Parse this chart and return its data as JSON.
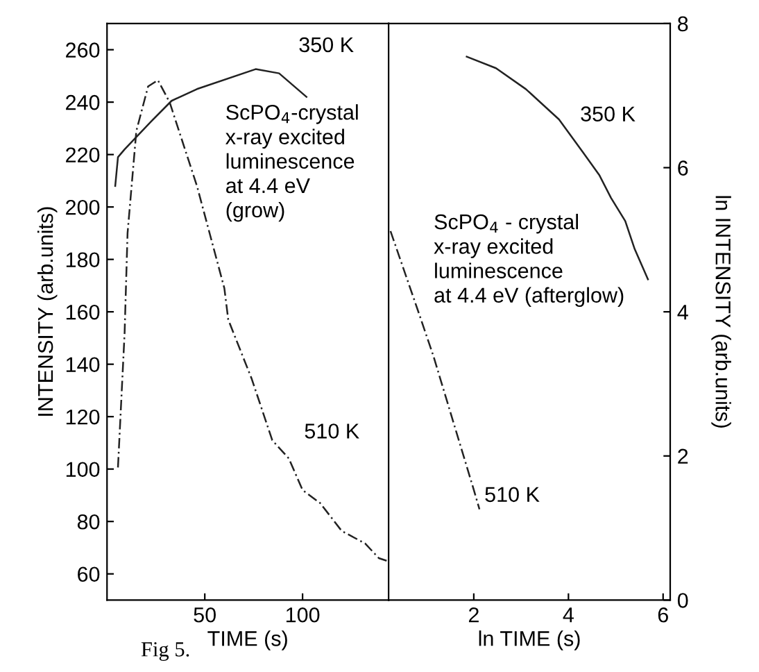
{
  "chart_data": [
    {
      "type": "line",
      "xlabel": "TIME (s)",
      "ylabel": "INTENSITY (arb.units)",
      "xlim": [
        0,
        144
      ],
      "ylim": [
        50,
        270
      ],
      "xticks": [
        50,
        100
      ],
      "yticks": [
        60,
        80,
        100,
        120,
        140,
        160,
        180,
        200,
        220,
        240,
        260
      ],
      "grid": false,
      "legend": false,
      "annotations": [
        "ScPO$_{4}$-crystal\nx-ray excited\nluminescence\nat 4.4 eV\n(grow)",
        "Fig 5."
      ],
      "series": [
        {
          "name": "350 K",
          "color": "#222222",
          "line_style": "solid",
          "x": [
            4.2,
            5.6,
            9,
            22.5,
            33,
            46,
            76,
            88,
            102
          ],
          "values": [
            208,
            219,
            222,
            232.6,
            240.5,
            245,
            252.6,
            251,
            242
          ]
        },
        {
          "name": "510 K",
          "color": "#222222",
          "line_style": "dashed",
          "x": [
            5.6,
            9,
            10.5,
            15,
            21,
            26,
            32,
            46,
            60,
            62,
            74,
            84.5,
            93,
            100,
            109,
            120,
            132,
            139,
            143
          ],
          "values": [
            100.6,
            152,
            190,
            229,
            246,
            248.4,
            240,
            208,
            169,
            157,
            134.4,
            111,
            104,
            92,
            87,
            76.4,
            71.6,
            66,
            65
          ]
        }
      ]
    },
    {
      "type": "line",
      "xlabel": "ln TIME (s)",
      "ylabel": "ln INTENSITY (arb.units)",
      "xlim": [
        0.2,
        6.15
      ],
      "ylim": [
        0,
        8
      ],
      "xticks": [
        2,
        4,
        6
      ],
      "yticks": [
        0,
        2,
        4,
        6,
        8
      ],
      "grid": false,
      "legend": false,
      "annotations": [
        "ScPO$_{4}$ - crystal\nx-ray excited\nluminescence\nat 4.4 eV (afterglow)"
      ],
      "series": [
        {
          "name": "350 K",
          "color": "#222222",
          "line_style": "solid",
          "x": [
            1.85,
            2.47,
            3.1,
            3.8,
            4.3,
            4.65,
            4.9,
            5.2,
            5.4,
            5.68
          ],
          "values": [
            7.54,
            7.38,
            7.09,
            6.67,
            6.22,
            5.9,
            5.58,
            5.26,
            4.87,
            4.45
          ]
        },
        {
          "name": "510 K",
          "color": "#222222",
          "line_style": "dashed",
          "x": [
            0.24,
            0.85,
            1.15,
            1.6,
            2.0,
            2.12
          ],
          "values": [
            5.12,
            3.96,
            3.38,
            2.4,
            1.53,
            1.26
          ]
        }
      ]
    }
  ]
}
